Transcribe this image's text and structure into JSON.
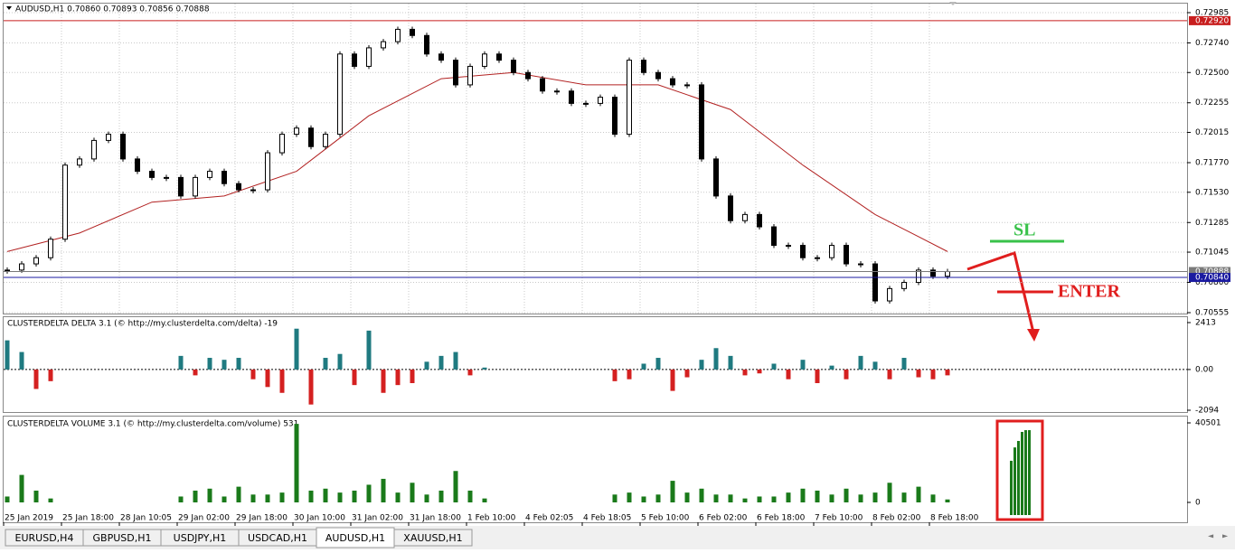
{
  "header": {
    "title": "AUDUSD,H1  0.70860 0.70893 0.70856 0.70888"
  },
  "chart_data": {
    "type": "candlestick",
    "close": [
      0.709,
      0.7095,
      0.71,
      0.7115,
      0.7175,
      0.718,
      0.7195,
      0.72,
      0.718,
      0.717,
      0.7165,
      0.7165,
      0.715,
      0.7165,
      0.717,
      0.716,
      0.7155,
      0.7155,
      0.7185,
      0.72,
      0.7205,
      0.719,
      0.72,
      0.7265,
      0.7255,
      0.727,
      0.7275,
      0.7285,
      0.728,
      0.7265,
      0.726,
      0.724,
      0.7255,
      0.7265,
      0.726,
      0.725,
      0.7245,
      0.7235,
      0.7235,
      0.7225,
      0.7225,
      0.723,
      0.72,
      0.726,
      0.725,
      0.7245,
      0.724,
      0.724,
      0.718,
      0.715,
      0.713,
      0.7135,
      0.7125,
      0.711,
      0.711,
      0.71,
      0.71,
      0.711,
      0.7095,
      0.7095,
      0.7065,
      0.7075,
      0.708,
      0.709,
      0.7085,
      0.70888
    ],
    "ma": [
      0.7105,
      0.712,
      0.7145,
      0.715,
      0.717,
      0.7215,
      0.7245,
      0.725,
      0.724,
      0.724,
      0.722,
      0.7175,
      0.7135,
      0.7105
    ],
    "candle_color": "#000000",
    "ma_color": "#b22222",
    "ylim": [
      0.70555,
      0.72985
    ],
    "yticks": [
      0.72985,
      {
        "value": 0.7274,
        "label": "0.72740"
      },
      {
        "value": 0.725,
        "label": "0.72500"
      },
      0.72255,
      0.72015,
      {
        "value": 0.7177,
        "label": "0.71770"
      },
      {
        "value": 0.7153,
        "label": "0.71530"
      },
      0.71285,
      0.71045,
      {
        "value": 0.708,
        "label": "0.70800"
      },
      0.70555
    ],
    "markers": [
      {
        "value": 0.7292,
        "label": "0.72920",
        "color": "#c81e1e"
      },
      {
        "value": 0.70888,
        "label": "0.70888",
        "color": "#7a7a7a"
      },
      {
        "value": 0.7084,
        "label": "0.70840",
        "color": "#1a1aa0"
      }
    ],
    "grid": true
  },
  "delta": {
    "title": "CLUSTERDELTA DELTA 3.1 (© http://my.clusterdelta.com/delta) -19",
    "values": [
      1500,
      900,
      -1000,
      -600,
      null,
      null,
      null,
      null,
      null,
      null,
      null,
      null,
      700,
      -300,
      600,
      500,
      600,
      -500,
      -900,
      -1200,
      2100,
      -1800,
      600,
      800,
      -800,
      2000,
      -1200,
      -800,
      -700,
      400,
      700,
      900,
      -300,
      100,
      null,
      null,
      null,
      null,
      null,
      null,
      null,
      null,
      -600,
      -500,
      300,
      600,
      -1100,
      -400,
      500,
      1100,
      700,
      -300,
      -200,
      300,
      -500,
      500,
      -700,
      200,
      -500,
      700,
      400,
      -500,
      600,
      -400,
      -500,
      -300
    ],
    "positive_color": "#1f7a80",
    "negative_color": "#d42020",
    "ylim": [
      -2094,
      2413
    ],
    "yticks": [
      2413,
      {
        "value": 0,
        "label": "0.00"
      },
      -2094
    ]
  },
  "volume": {
    "title": "CLUSTERDELTA VOLUME 3.1 (© http://my.clusterdelta.com/volume) 531",
    "values": [
      3000,
      14000,
      6000,
      2000,
      null,
      null,
      null,
      null,
      null,
      null,
      null,
      null,
      3000,
      6000,
      7000,
      3000,
      8000,
      4000,
      4000,
      5000,
      40000,
      6000,
      7000,
      5000,
      6000,
      9000,
      12000,
      5000,
      10000,
      4000,
      6000,
      16000,
      6000,
      2000,
      null,
      null,
      null,
      null,
      null,
      null,
      null,
      null,
      4000,
      5000,
      3000,
      4000,
      11000,
      5000,
      7000,
      4000,
      4000,
      2000,
      3000,
      3000,
      5000,
      7000,
      6000,
      4000,
      7000,
      4000,
      5000,
      10000,
      5000,
      8000,
      4000,
      1500
    ],
    "highlight_values": [
      21200,
      28000,
      31300,
      35900,
      36800,
      36800
    ],
    "color": "#1a7a1a",
    "ylim": [
      0,
      40501
    ],
    "yticks": [
      40501,
      0
    ]
  },
  "x_labels": [
    "25 Jan 2019",
    "25 Jan 18:00",
    "28 Jan 10:05",
    "29 Jan 02:00",
    "29 Jan 18:00",
    "30 Jan 10:00",
    "31 Jan 02:00",
    "31 Jan 18:00",
    "1 Feb 10:00",
    "4 Feb 02:05",
    "4 Feb 18:05",
    "5 Feb 10:00",
    "6 Feb 02:00",
    "6 Feb 18:00",
    "7 Feb 10:00",
    "8 Feb 02:00",
    "8 Feb 18:00"
  ],
  "annotations": {
    "sl": "SL",
    "enter": "ENTER"
  },
  "tabs": [
    "EURUSD,H4",
    "GBPUSD,H1",
    "USDJPY,H1",
    "USDCAD,H1",
    "AUDUSD,H1",
    "XAUUSD,H1"
  ],
  "active_tab": 4
}
